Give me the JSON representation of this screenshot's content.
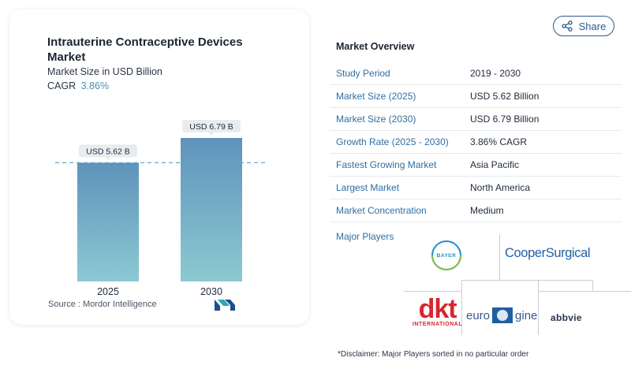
{
  "chart_data": {
    "type": "bar",
    "title": "Intrauterine Contraceptive Devices Market",
    "subtitle": "Market Size in USD Billion",
    "cagr_label": "CAGR",
    "cagr_value": "3.86%",
    "categories": [
      "2025",
      "2030"
    ],
    "values": [
      5.62,
      6.79
    ],
    "data_labels": [
      "USD 5.62 B",
      "USD 6.79 B"
    ],
    "ylim": [
      0,
      6.79
    ],
    "grid": false,
    "reference_line_value": 5.62,
    "colors": {
      "bar_top": "#5f93bb",
      "bar_bottom": "#8cc9d2",
      "label_bg": "#e9ecef",
      "ref_line": "#6aa7c3"
    }
  },
  "source": {
    "label": "Source :",
    "name": "Mordor Intelligence"
  },
  "share": {
    "label": "Share",
    "icon": "share-icon"
  },
  "overview": {
    "title": "Market Overview",
    "rows": [
      {
        "key": "Study Period",
        "value": "2019 - 2030"
      },
      {
        "key": "Market Size (2025)",
        "value": "USD 5.62 Billion"
      },
      {
        "key": "Market Size (2030)",
        "value": "USD 6.79 Billion"
      },
      {
        "key": "Growth Rate (2025 - 2030)",
        "value": "3.86% CAGR"
      },
      {
        "key": "Fastest Growing Market",
        "value": "Asia Pacific"
      },
      {
        "key": "Largest Market",
        "value": "North America"
      },
      {
        "key": "Market Concentration",
        "value": "Medium"
      }
    ]
  },
  "players": {
    "label": "Major Players",
    "logos": {
      "bayer": "BAYER",
      "cooper": "CooperSurgical",
      "dkt_main": "dkt",
      "dkt_sub": "INTERNATIONAL",
      "euro_left": "euro",
      "euro_right": "gine",
      "abbvie": "abbvie"
    }
  },
  "disclaimer": "*Disclaimer: Major Players sorted in no particular order"
}
